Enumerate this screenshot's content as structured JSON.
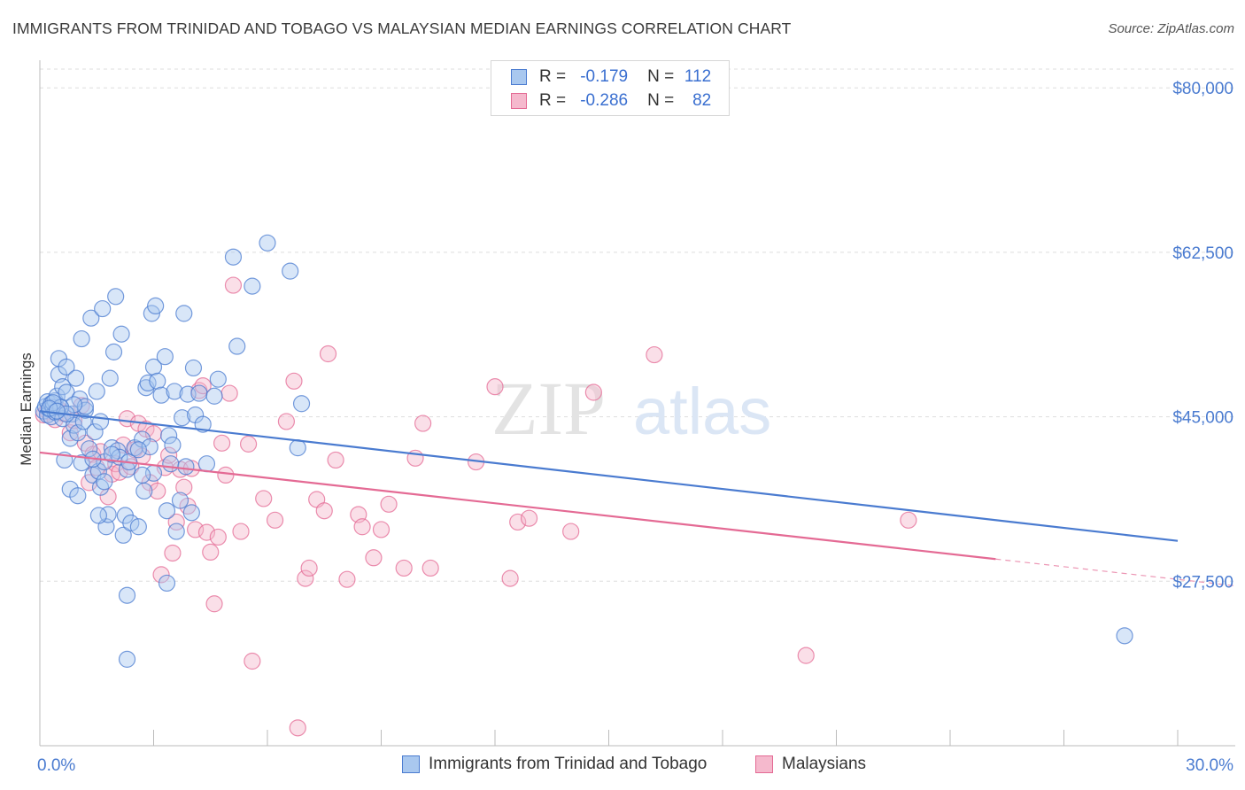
{
  "title": "IMMIGRANTS FROM TRINIDAD AND TOBAGO VS MALAYSIAN MEDIAN EARNINGS CORRELATION CHART",
  "source": "Source: ZipAtlas.com",
  "watermark": {
    "zip": "ZIP",
    "atlas": "atlas"
  },
  "colors": {
    "blue": "#4a7bd0",
    "blue_fill": "#a9c8ef",
    "pink": "#e46a94",
    "pink_fill": "#f5b9cd",
    "axis_label": "#4a7bd0",
    "grid": "#dddddd"
  },
  "legend_top": {
    "rows": [
      {
        "r_label": "R =",
        "r_value": "-0.179",
        "n_label": "N =",
        "n_value": "112",
        "color": "blue"
      },
      {
        "r_label": "R =",
        "r_value": "-0.286",
        "n_label": "N =",
        "n_value": "82",
        "color": "pink"
      }
    ]
  },
  "legend_bottom": [
    {
      "label": "Immigrants from Trinidad and Tobago",
      "color": "blue"
    },
    {
      "label": "Malaysians",
      "color": "pink"
    }
  ],
  "chart_data": {
    "type": "scatter",
    "ylabel": "Median Earnings",
    "x_tick_labels": [
      "0.0%",
      "30.0%"
    ],
    "y_tick_labels": [
      "$80,000",
      "$62,500",
      "$45,000",
      "$27,500"
    ],
    "y_ticks": [
      80000,
      62500,
      45000,
      27500
    ],
    "xlim": [
      0,
      30
    ],
    "ylim": [
      10000,
      82000
    ],
    "grid": true,
    "series": [
      {
        "name": "Immigrants from Trinidad and Tobago",
        "color": "blue",
        "trend": {
          "x": [
            0,
            30
          ],
          "y": [
            45600,
            31800
          ],
          "dashed_from": null
        },
        "points": [
          [
            0.1,
            45600
          ],
          [
            0.15,
            46100
          ],
          [
            0.2,
            45200
          ],
          [
            0.2,
            46600
          ],
          [
            0.25,
            45800
          ],
          [
            0.3,
            46400
          ],
          [
            0.3,
            45000
          ],
          [
            0.35,
            46000
          ],
          [
            0.4,
            45500
          ],
          [
            0.4,
            46700
          ],
          [
            0.45,
            47200
          ],
          [
            0.5,
            49500
          ],
          [
            0.5,
            51200
          ],
          [
            0.55,
            46000
          ],
          [
            0.6,
            44800
          ],
          [
            0.6,
            48200
          ],
          [
            0.65,
            40400
          ],
          [
            0.7,
            47600
          ],
          [
            0.7,
            50300
          ],
          [
            0.8,
            37300
          ],
          [
            0.8,
            42700
          ],
          [
            0.85,
            45300
          ],
          [
            0.9,
            44100
          ],
          [
            0.95,
            49100
          ],
          [
            1.0,
            36600
          ],
          [
            1.0,
            43300
          ],
          [
            1.05,
            46900
          ],
          [
            1.1,
            40100
          ],
          [
            1.1,
            53300
          ],
          [
            1.15,
            44500
          ],
          [
            1.2,
            45700
          ],
          [
            1.3,
            41600
          ],
          [
            1.35,
            55500
          ],
          [
            1.4,
            38800
          ],
          [
            1.45,
            43400
          ],
          [
            1.5,
            47700
          ],
          [
            1.55,
            39200
          ],
          [
            1.6,
            37500
          ],
          [
            1.6,
            44500
          ],
          [
            1.65,
            56500
          ],
          [
            1.7,
            40200
          ],
          [
            1.75,
            33300
          ],
          [
            1.8,
            34600
          ],
          [
            1.85,
            49100
          ],
          [
            1.9,
            41700
          ],
          [
            1.95,
            51900
          ],
          [
            2.0,
            57800
          ],
          [
            2.05,
            41400
          ],
          [
            2.1,
            40700
          ],
          [
            2.15,
            53800
          ],
          [
            2.2,
            32400
          ],
          [
            2.25,
            34500
          ],
          [
            2.3,
            39400
          ],
          [
            2.35,
            40200
          ],
          [
            2.4,
            33700
          ],
          [
            2.5,
            41700
          ],
          [
            2.6,
            33300
          ],
          [
            2.7,
            42600
          ],
          [
            2.75,
            37100
          ],
          [
            2.8,
            48100
          ],
          [
            2.85,
            48600
          ],
          [
            2.9,
            41800
          ],
          [
            2.95,
            56000
          ],
          [
            3.0,
            50300
          ],
          [
            3.05,
            56800
          ],
          [
            3.1,
            48800
          ],
          [
            3.2,
            47300
          ],
          [
            3.3,
            51400
          ],
          [
            3.35,
            27300
          ],
          [
            3.4,
            43000
          ],
          [
            3.45,
            40000
          ],
          [
            3.5,
            42000
          ],
          [
            3.55,
            47700
          ],
          [
            3.6,
            32800
          ],
          [
            3.7,
            36100
          ],
          [
            3.75,
            44900
          ],
          [
            3.8,
            56000
          ],
          [
            3.85,
            39700
          ],
          [
            3.9,
            47400
          ],
          [
            4.0,
            34800
          ],
          [
            4.05,
            50200
          ],
          [
            4.1,
            45200
          ],
          [
            4.2,
            47500
          ],
          [
            4.3,
            44200
          ],
          [
            4.4,
            40000
          ],
          [
            4.6,
            47200
          ],
          [
            4.7,
            49000
          ],
          [
            5.1,
            62000
          ],
          [
            5.2,
            52500
          ],
          [
            5.6,
            58900
          ],
          [
            6.0,
            63500
          ],
          [
            6.6,
            60500
          ],
          [
            6.8,
            41700
          ],
          [
            6.9,
            46400
          ],
          [
            2.3,
            26000
          ],
          [
            2.3,
            19200
          ],
          [
            3.35,
            35000
          ],
          [
            1.7,
            38100
          ],
          [
            1.2,
            46100
          ],
          [
            0.9,
            46300
          ],
          [
            28.6,
            21700
          ],
          [
            0.55,
            46000
          ],
          [
            0.7,
            45300
          ],
          [
            0.35,
            46500
          ],
          [
            0.25,
            45900
          ],
          [
            1.4,
            40500
          ],
          [
            2.6,
            41500
          ],
          [
            3.0,
            39000
          ],
          [
            1.9,
            41000
          ],
          [
            2.7,
            38800
          ],
          [
            1.55,
            34500
          ],
          [
            0.45,
            45600
          ]
        ]
      },
      {
        "name": "Malaysians",
        "color": "pink",
        "trend": {
          "x": [
            0,
            30
          ],
          "y": [
            41200,
            27700
          ],
          "dashed_from": 25.2
        },
        "points": [
          [
            0.1,
            45200
          ],
          [
            0.2,
            45600
          ],
          [
            0.3,
            46000
          ],
          [
            0.4,
            44700
          ],
          [
            0.5,
            45800
          ],
          [
            0.6,
            45400
          ],
          [
            0.8,
            43300
          ],
          [
            0.9,
            44600
          ],
          [
            1.1,
            46200
          ],
          [
            1.2,
            42200
          ],
          [
            1.3,
            38000
          ],
          [
            1.4,
            41000
          ],
          [
            1.5,
            39600
          ],
          [
            1.6,
            41300
          ],
          [
            1.8,
            36500
          ],
          [
            1.9,
            38900
          ],
          [
            2.0,
            40000
          ],
          [
            2.1,
            39100
          ],
          [
            2.2,
            42000
          ],
          [
            2.3,
            44800
          ],
          [
            2.4,
            39700
          ],
          [
            2.5,
            41500
          ],
          [
            2.6,
            44300
          ],
          [
            2.7,
            40800
          ],
          [
            2.8,
            43700
          ],
          [
            2.9,
            38000
          ],
          [
            3.0,
            43200
          ],
          [
            3.1,
            37100
          ],
          [
            3.2,
            28200
          ],
          [
            3.3,
            39600
          ],
          [
            3.4,
            40900
          ],
          [
            3.5,
            30500
          ],
          [
            3.6,
            33800
          ],
          [
            3.7,
            39400
          ],
          [
            3.8,
            37500
          ],
          [
            3.9,
            35500
          ],
          [
            4.0,
            39500
          ],
          [
            4.1,
            33000
          ],
          [
            4.2,
            47800
          ],
          [
            4.3,
            48300
          ],
          [
            4.4,
            32700
          ],
          [
            4.5,
            30600
          ],
          [
            4.6,
            25100
          ],
          [
            4.7,
            32200
          ],
          [
            4.8,
            42200
          ],
          [
            4.9,
            38800
          ],
          [
            5.0,
            47500
          ],
          [
            5.1,
            59000
          ],
          [
            5.3,
            32800
          ],
          [
            5.5,
            42100
          ],
          [
            5.6,
            19000
          ],
          [
            5.9,
            36300
          ],
          [
            6.2,
            34000
          ],
          [
            6.5,
            44500
          ],
          [
            6.7,
            48800
          ],
          [
            6.8,
            11900
          ],
          [
            7.0,
            27800
          ],
          [
            7.1,
            28900
          ],
          [
            7.3,
            36200
          ],
          [
            7.5,
            35000
          ],
          [
            7.6,
            51700
          ],
          [
            7.8,
            40400
          ],
          [
            8.1,
            27700
          ],
          [
            8.4,
            34600
          ],
          [
            8.5,
            33300
          ],
          [
            8.8,
            30000
          ],
          [
            9.0,
            33000
          ],
          [
            9.2,
            35700
          ],
          [
            9.6,
            28900
          ],
          [
            9.9,
            40600
          ],
          [
            10.1,
            44300
          ],
          [
            10.3,
            28900
          ],
          [
            11.5,
            40200
          ],
          [
            12.0,
            48200
          ],
          [
            12.4,
            27800
          ],
          [
            12.6,
            33800
          ],
          [
            12.9,
            34200
          ],
          [
            14.0,
            32800
          ],
          [
            14.6,
            47600
          ],
          [
            16.2,
            51600
          ],
          [
            20.2,
            19600
          ],
          [
            22.9,
            34000
          ]
        ]
      }
    ]
  }
}
